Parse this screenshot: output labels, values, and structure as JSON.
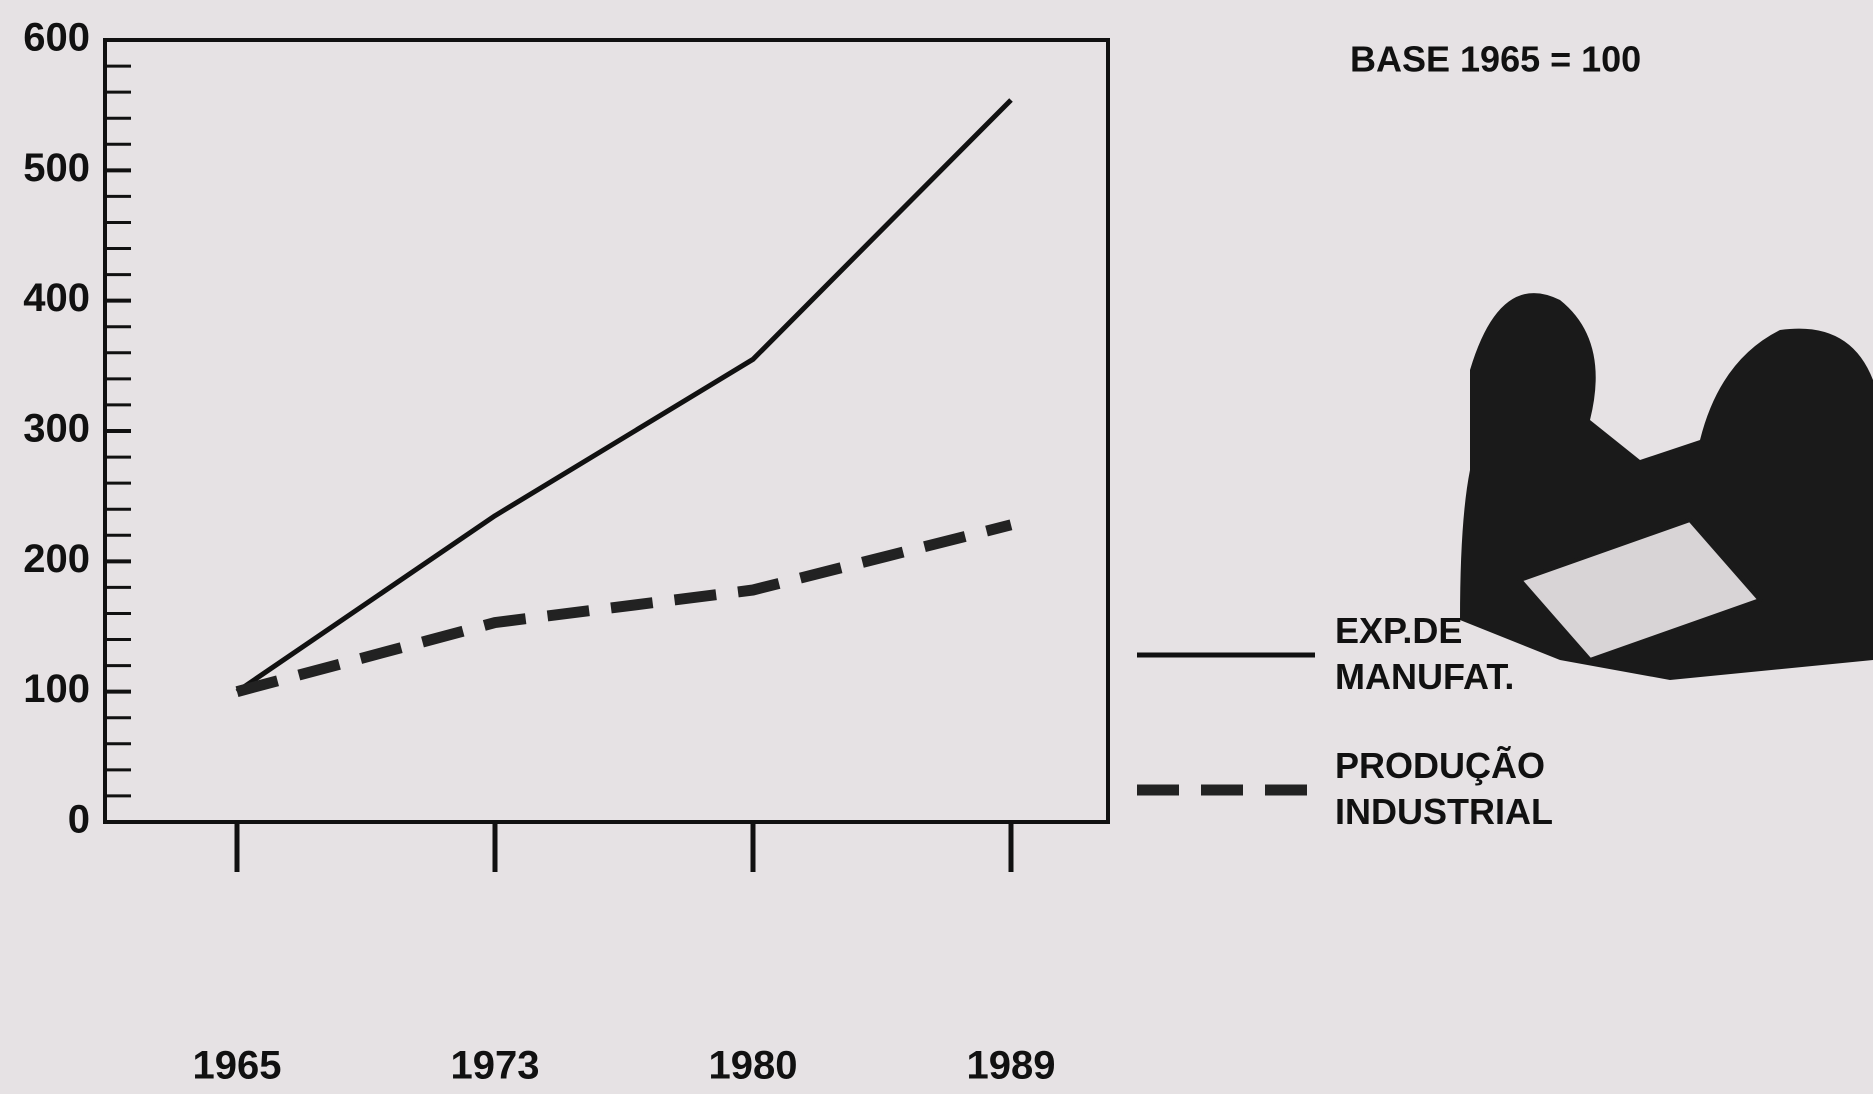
{
  "chart_data": {
    "type": "line",
    "annotation": "BASE 1965 = 100",
    "categories": [
      "1965",
      "1973",
      "1980",
      "1989"
    ],
    "series": [
      {
        "name": "EXP.DE MANUFAT.",
        "color": "#111111",
        "style": "solid",
        "values": [
          100,
          235,
          355,
          554
        ]
      },
      {
        "name": "PRODUÇÃO INDUSTRIAL",
        "color": "#222222",
        "style": "dashed",
        "values": [
          100,
          153,
          178,
          228
        ]
      }
    ],
    "ylim": [
      0,
      600
    ],
    "yticks": [
      0,
      100,
      200,
      300,
      400,
      500,
      600
    ],
    "yticks_minor": [
      20,
      40,
      60,
      80,
      120,
      140,
      160,
      180,
      220,
      240,
      260,
      280,
      320,
      340,
      360,
      380,
      420,
      440,
      460,
      480,
      520,
      540,
      560,
      580
    ],
    "legend": "right"
  }
}
